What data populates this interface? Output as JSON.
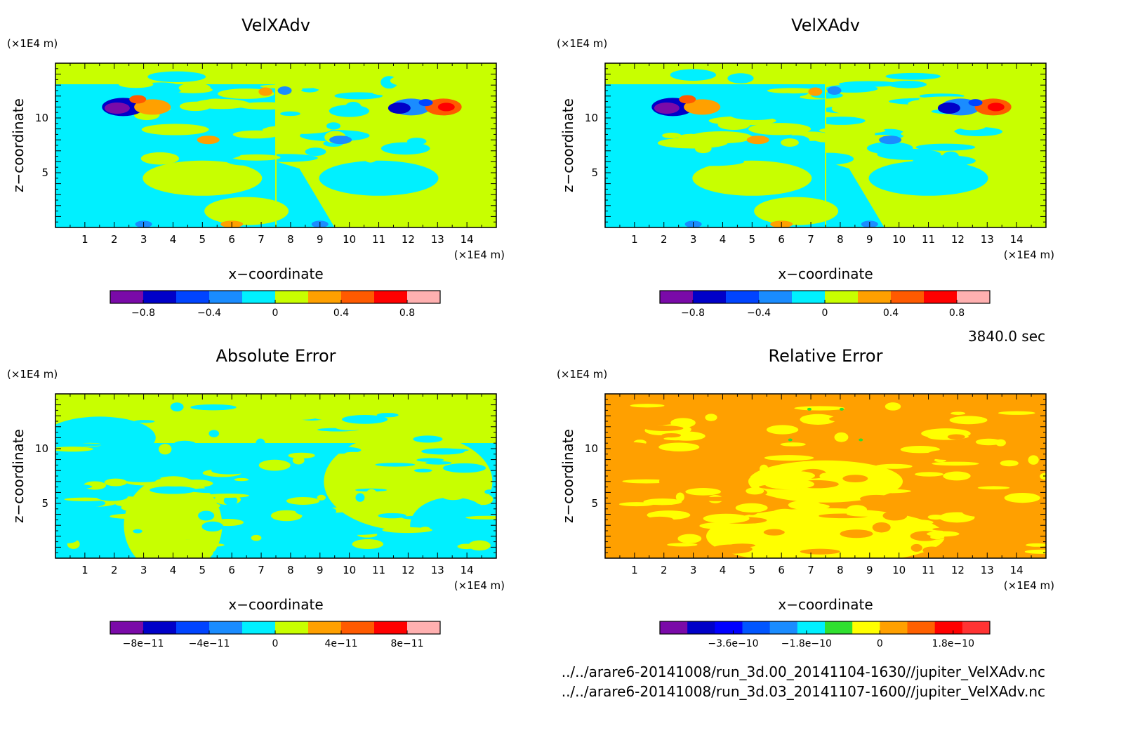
{
  "time_label": "3840.0 sec",
  "files": [
    "../../arare6-20141008/run_3d.00_20141104-1630//jupiter_VelXAdv.nc",
    "../../arare6-20141008/run_3d.03_20141107-1600//jupiter_VelXAdv.nc"
  ],
  "colors": {
    "palette10": [
      "#7a0aa8",
      "#0000c8",
      "#0044ff",
      "#1a8cff",
      "#00f0ff",
      "#c8ff00",
      "#ffa000",
      "#ff5a00",
      "#ff0000",
      "#ffb0b0"
    ],
    "palette12": [
      "#7a0aa8",
      "#0000c8",
      "#0000ff",
      "#0055ff",
      "#1a8cff",
      "#00f0ff",
      "#30e030",
      "#ffff00",
      "#ffa000",
      "#ff6000",
      "#ff0000",
      "#ff3333"
    ]
  },
  "chart_data": [
    {
      "type": "heatmap",
      "title": "VelXAdv",
      "xlabel": "x−coordinate",
      "ylabel": "z−coordinate",
      "x_unit": "(×1E4 m)",
      "y_unit": "(×1E4 m)",
      "xlim": [
        0,
        15
      ],
      "ylim": [
        0,
        15
      ],
      "x_ticks": [
        1,
        2,
        3,
        4,
        5,
        6,
        7,
        8,
        9,
        10,
        11,
        12,
        13,
        14
      ],
      "y_ticks": [
        5,
        10
      ],
      "colorbar": {
        "min": -1.0,
        "max": 1.0,
        "bins": 10,
        "ticks": [
          -0.8,
          -0.4,
          0,
          0.4,
          0.8
        ],
        "tick_labels": [
          "−0.8",
          "−0.4",
          "0",
          "0.4",
          "0.8"
        ]
      }
    },
    {
      "type": "heatmap",
      "title": "VelXAdv",
      "xlabel": "x−coordinate",
      "ylabel": "z−coordinate",
      "x_unit": "(×1E4 m)",
      "y_unit": "(×1E4 m)",
      "xlim": [
        0,
        15
      ],
      "ylim": [
        0,
        15
      ],
      "x_ticks": [
        1,
        2,
        3,
        4,
        5,
        6,
        7,
        8,
        9,
        10,
        11,
        12,
        13,
        14
      ],
      "y_ticks": [
        5,
        10
      ],
      "colorbar": {
        "min": -1.0,
        "max": 1.0,
        "bins": 10,
        "ticks": [
          -0.8,
          -0.4,
          0,
          0.4,
          0.8
        ],
        "tick_labels": [
          "−0.8",
          "−0.4",
          "0",
          "0.4",
          "0.8"
        ]
      }
    },
    {
      "type": "heatmap",
      "title": "Absolute Error",
      "xlabel": "x−coordinate",
      "ylabel": "z−coordinate",
      "x_unit": "(×1E4 m)",
      "y_unit": "(×1E4 m)",
      "xlim": [
        0,
        15
      ],
      "ylim": [
        0,
        15
      ],
      "x_ticks": [
        1,
        2,
        3,
        4,
        5,
        6,
        7,
        8,
        9,
        10,
        11,
        12,
        13,
        14
      ],
      "y_ticks": [
        5,
        10
      ],
      "colorbar": {
        "min": -1e-10,
        "max": 1e-10,
        "bins": 10,
        "ticks": [
          -8e-11,
          -4e-11,
          0,
          4e-11,
          8e-11
        ],
        "tick_labels": [
          "−8e−11",
          "−4e−11",
          "0",
          "4e−11",
          "8e−11"
        ]
      }
    },
    {
      "type": "heatmap",
      "title": "Relative Error",
      "xlabel": "x−coordinate",
      "ylabel": "z−coordinate",
      "x_unit": "(×1E4 m)",
      "y_unit": "(×1E4 m)",
      "xlim": [
        0,
        15
      ],
      "ylim": [
        0,
        15
      ],
      "x_ticks": [
        1,
        2,
        3,
        4,
        5,
        6,
        7,
        8,
        9,
        10,
        11,
        12,
        13,
        14
      ],
      "y_ticks": [
        5,
        10
      ],
      "colorbar": {
        "min": -5.4e-10,
        "max": 2.7e-10,
        "bins": 12,
        "ticks": [
          -3.6e-10,
          -1.8e-10,
          0,
          1.8e-10
        ],
        "tick_labels": [
          "−3.6e−10",
          "−1.8e−10",
          "0",
          "1.8e−10"
        ]
      }
    }
  ]
}
